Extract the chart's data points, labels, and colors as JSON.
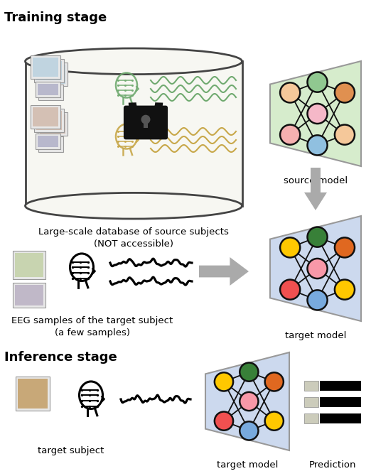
{
  "title_training": "Training stage",
  "title_inference": "Inference stage",
  "label_database": "Large-scale database of source subjects\n(NOT accessible)",
  "label_eeg_samples": "EEG samples of the target subject\n(a few samples)",
  "label_source_model": "source model",
  "label_target_model_1": "target model",
  "label_target_model_2": "target model",
  "label_target_subject": "target subject",
  "label_prediction": "Prediction",
  "bg_color": "#ffffff",
  "cylinder_fill": "#f7f7f2",
  "cylinder_stroke": "#444444",
  "source_model_bg": "#d6eccc",
  "target_model_bg": "#ccd9ee",
  "node_colors_source": [
    "#f5c89a",
    "#f5b0b0",
    "#90c890",
    "#f5b8c8",
    "#90c0e0",
    "#e09050"
  ],
  "node_colors_target": [
    "#ffc800",
    "#f05050",
    "#388038",
    "#f898a8",
    "#78aade",
    "#e06820"
  ],
  "arrow_color": "#aaaaaa",
  "lock_color": "#111111",
  "wave_color_1": "#70aa70",
  "wave_color_2": "#c8a84a",
  "wave_color_black": "#111111"
}
